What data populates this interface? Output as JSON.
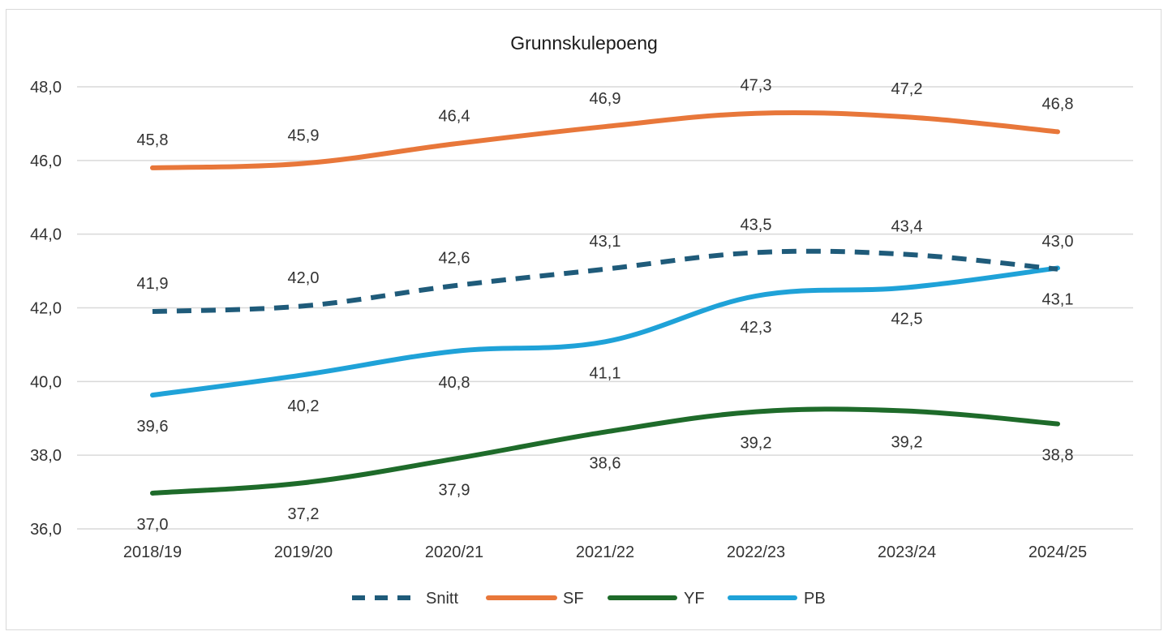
{
  "chart_data": {
    "type": "line",
    "title": "Grunnskulepoeng",
    "xlabel": "",
    "ylabel": "",
    "categories": [
      "2018/19",
      "2019/20",
      "2020/21",
      "2021/22",
      "2022/23",
      "2023/24",
      "2024/25"
    ],
    "ylim": [
      36,
      48
    ],
    "yticks": [
      "36,0",
      "38,0",
      "40,0",
      "42,0",
      "44,0",
      "46,0",
      "48,0"
    ],
    "grid": true,
    "legend_position": "bottom",
    "series": [
      {
        "name": "Snitt",
        "color": "#1f5b7a",
        "dashed": true,
        "values": [
          41.9,
          42.05,
          42.6,
          43.05,
          43.5,
          43.45,
          43.05
        ],
        "labels": [
          "41,9",
          "42,0",
          "42,6",
          "43,1",
          "43,5",
          "43,4",
          "43,0"
        ],
        "label_pos": "above"
      },
      {
        "name": "SF",
        "color": "#e8773a",
        "dashed": false,
        "values": [
          45.8,
          45.92,
          46.45,
          46.92,
          47.28,
          47.18,
          46.78
        ],
        "labels": [
          "45,8",
          "45,9",
          "46,4",
          "46,9",
          "47,3",
          "47,2",
          "46,8"
        ],
        "label_pos": "above"
      },
      {
        "name": "YF",
        "color": "#1e6b2a",
        "dashed": false,
        "values": [
          36.97,
          37.25,
          37.9,
          38.63,
          39.18,
          39.2,
          38.85
        ],
        "labels": [
          "37,0",
          "37,2",
          "37,9",
          "38,6",
          "39,2",
          "39,2",
          "38,8"
        ],
        "label_pos": "below"
      },
      {
        "name": "PB",
        "color": "#1fa2d8",
        "dashed": false,
        "values": [
          39.63,
          40.18,
          40.82,
          41.08,
          42.32,
          42.55,
          43.08
        ],
        "labels": [
          "39,6",
          "40,2",
          "40,8",
          "41,1",
          "42,3",
          "42,5",
          "43,1"
        ],
        "label_pos": "below"
      }
    ]
  }
}
